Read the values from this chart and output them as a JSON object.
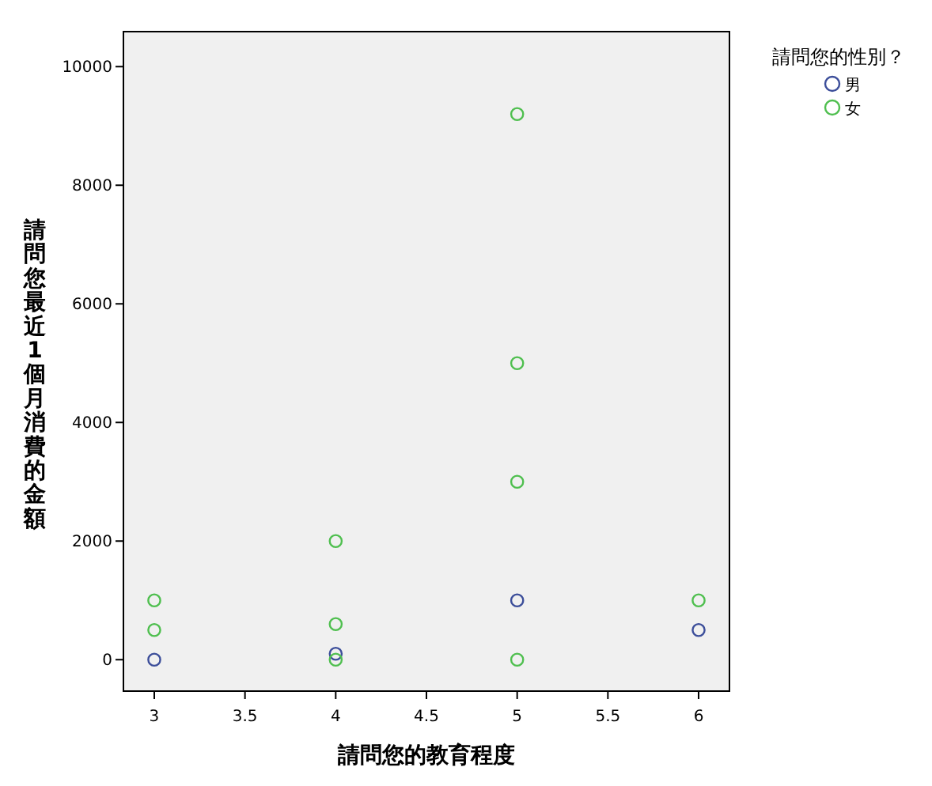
{
  "chart_data": {
    "type": "scatter",
    "xlabel": "請問您的教育程度",
    "ylabel": "請問您最近1個月消費的金額",
    "legend_title": "請問您的性別？",
    "xlim": [
      2.83,
      6.17
    ],
    "ylim": [
      -530,
      10590
    ],
    "xticks": [
      3,
      3.5,
      4,
      4.5,
      5,
      5.5,
      6
    ],
    "yticks": [
      0,
      2000,
      4000,
      6000,
      8000,
      10000
    ],
    "grid": false,
    "legend": "top right",
    "marker": "circle",
    "series": [
      {
        "name": "男",
        "color": "#3c4e9a",
        "x": [
          3,
          4,
          5,
          6
        ],
        "values": [
          0,
          100,
          1000,
          500
        ]
      },
      {
        "name": "女",
        "color": "#4fbf4f",
        "x": [
          3,
          3,
          4,
          4,
          4,
          5,
          5,
          5,
          5,
          6
        ],
        "values": [
          1000,
          500,
          2000,
          600,
          0,
          9200,
          5000,
          3000,
          0,
          1000
        ]
      }
    ]
  }
}
